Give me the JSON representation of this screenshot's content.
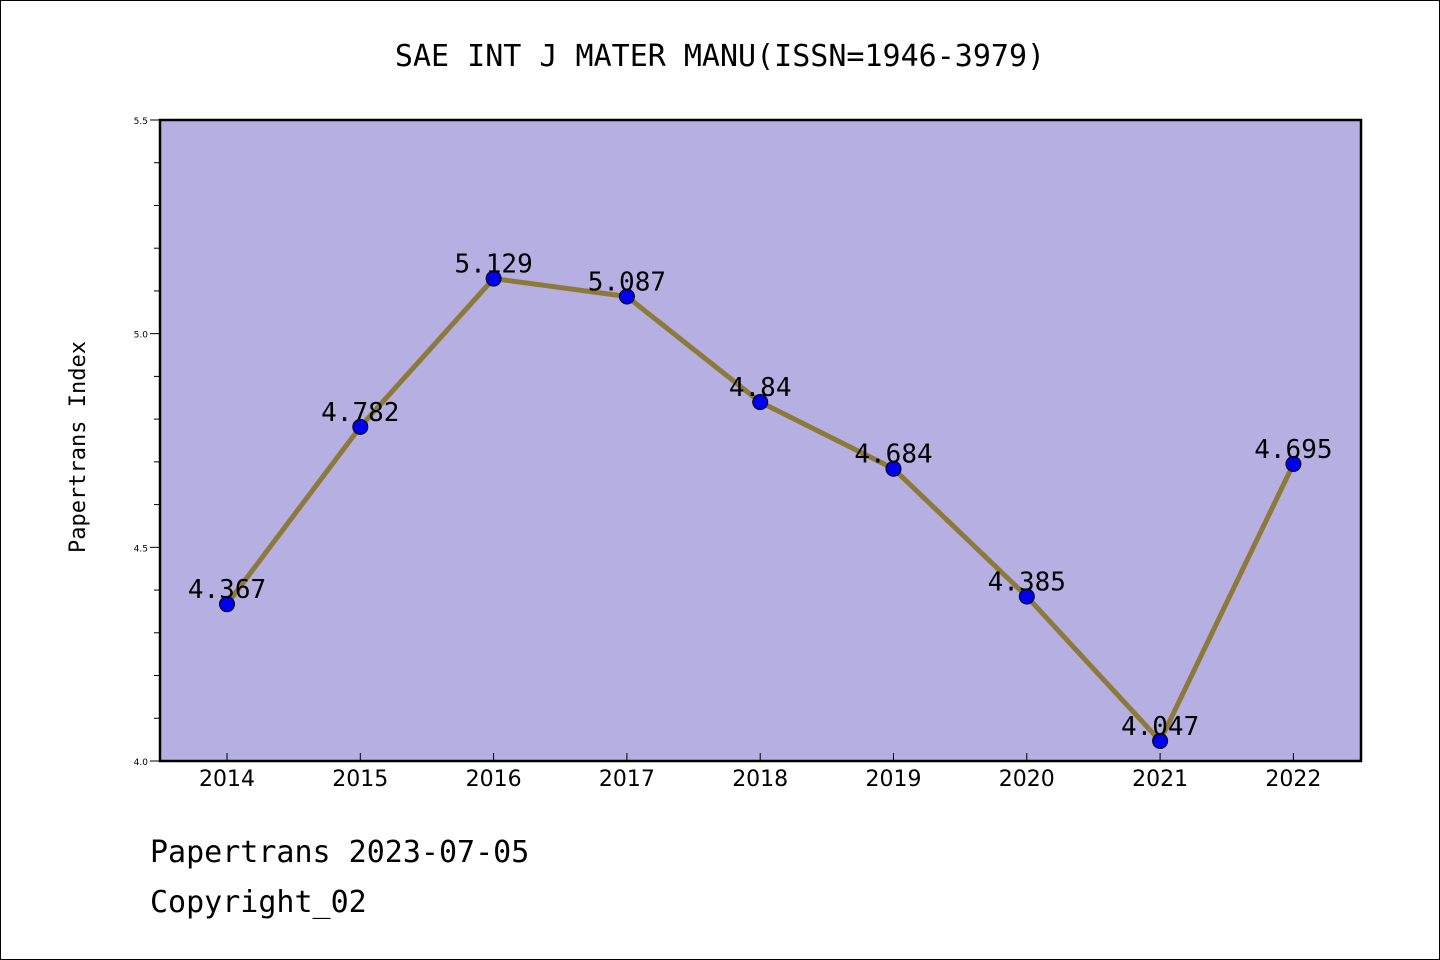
{
  "chart_data": {
    "type": "line",
    "title": "SAE INT J MATER MANU(ISSN=1946-3979)",
    "xlabel": "",
    "ylabel": "Papertrans Index",
    "categories": [
      "2014",
      "2015",
      "2016",
      "2017",
      "2018",
      "2019",
      "2020",
      "2021",
      "2022"
    ],
    "series": [
      {
        "values": [
          4.367,
          4.782,
          5.129,
          5.087,
          4.84,
          4.684,
          4.385,
          4.047,
          4.695
        ],
        "data_labels": [
          "4.367",
          "4.782",
          "5.129",
          "5.087",
          "4.84",
          "4.684",
          "4.385",
          "4.047",
          "4.695"
        ]
      }
    ],
    "ylim": [
      4.0,
      5.5
    ],
    "yticks": [
      "4.0",
      "4.5",
      "5.0",
      "5.5"
    ],
    "grid": false,
    "colors": {
      "plot_background": "#b5afe2",
      "line": "#8c7a3a",
      "marker": "#0000ee"
    }
  },
  "footer": {
    "line1": "Papertrans 2023-07-05",
    "line2": "Copyright_02"
  }
}
